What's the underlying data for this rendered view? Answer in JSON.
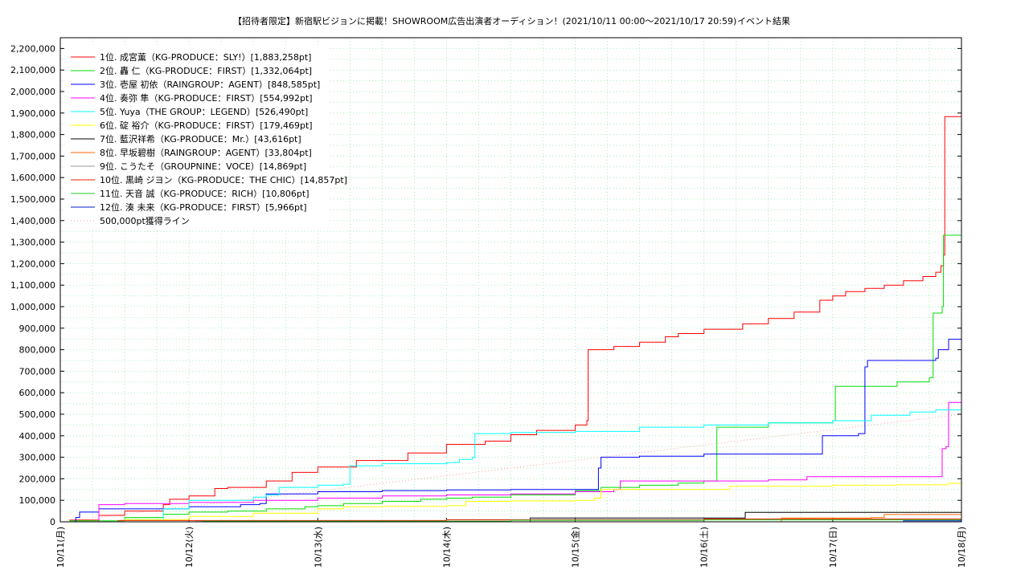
{
  "chart_data": {
    "type": "line",
    "title": "【招待者限定】新宿駅ビジョンに掲載！SHOWROOM広告出演者オーディション！(2021/10/11 00:00～2021/10/17 20:59)",
    "subtitle": "イベント結果",
    "ylim": [
      0,
      2250000
    ],
    "yticks": [
      "0",
      "100,000",
      "200,000",
      "300,000",
      "400,000",
      "500,000",
      "600,000",
      "700,000",
      "800,000",
      "900,000",
      "1,000,000",
      "1,100,000",
      "1,200,000",
      "1,300,000",
      "1,400,000",
      "1,500,000",
      "1,600,000",
      "1,700,000",
      "1,800,000",
      "1,900,000",
      "2,000,000",
      "2,100,000",
      "2,200,000"
    ],
    "xticks": [
      "10/11(月)",
      "10/12(火)",
      "10/13(水)",
      "10/14(木)",
      "10/15(金)",
      "10/16(土)",
      "10/17(日)",
      "10/18(月)"
    ],
    "xlim_days": [
      0,
      7
    ],
    "grid": true,
    "legend_position": "top-left",
    "series": [
      {
        "name": "1位. 成宮薫（KG-PRODUCE：SLY!）[1,883,258pt]",
        "color": "#ff0000",
        "x": [
          0.07,
          0.3,
          0.5,
          0.8,
          0.85,
          1.0,
          1.2,
          1.3,
          1.6,
          1.8,
          2.0,
          2.3,
          2.7,
          3.0,
          3.3,
          3.5,
          3.7,
          4.0,
          4.09,
          4.1,
          4.3,
          4.5,
          4.7,
          4.8,
          5.0,
          5.3,
          5.5,
          5.7,
          5.9,
          6.0,
          6.1,
          6.25,
          6.4,
          6.55,
          6.7,
          6.8,
          6.84,
          6.86,
          6.87,
          7.0
        ],
        "y": [
          8000,
          30000,
          50000,
          80000,
          105000,
          120000,
          155000,
          160000,
          190000,
          230000,
          255000,
          285000,
          320000,
          360000,
          375000,
          405000,
          425000,
          450000,
          470000,
          800000,
          815000,
          835000,
          860000,
          875000,
          895000,
          920000,
          945000,
          975000,
          1030000,
          1050000,
          1070000,
          1085000,
          1100000,
          1120000,
          1140000,
          1160000,
          1190000,
          1240000,
          1883258,
          1883258
        ]
      },
      {
        "name": "2位. 轟 仁（KG-PRODUCE：FIRST）[1,332,064pt]",
        "color": "#00dd00",
        "x": [
          0.07,
          0.5,
          0.8,
          1.0,
          1.3,
          1.6,
          1.9,
          2.0,
          2.2,
          2.5,
          2.8,
          3.0,
          3.2,
          3.5,
          4.0,
          4.2,
          4.5,
          4.8,
          5.0,
          5.1,
          5.5,
          6.0,
          6.02,
          6.5,
          6.75,
          6.78,
          6.85,
          6.86,
          7.0
        ],
        "y": [
          5000,
          20000,
          35000,
          45000,
          50000,
          60000,
          70000,
          75000,
          85000,
          95000,
          105000,
          110000,
          115000,
          125000,
          145000,
          160000,
          170000,
          180000,
          190000,
          440000,
          460000,
          470000,
          630000,
          650000,
          670000,
          970000,
          1000000,
          1332064,
          1332064
        ]
      },
      {
        "name": "3位. 壱屋 初依（RAINGROUP：AGENT）[848,585pt]",
        "color": "#0000ff",
        "x": [
          0.07,
          0.12,
          0.15,
          0.3,
          0.6,
          1.0,
          1.4,
          1.55,
          1.6,
          2.0,
          2.5,
          3.0,
          3.5,
          3.9,
          4.15,
          4.18,
          4.2,
          4.5,
          5.0,
          5.5,
          5.9,
          5.92,
          6.2,
          6.25,
          6.27,
          6.7,
          6.8,
          6.82,
          6.9,
          7.0
        ],
        "y": [
          0,
          20000,
          45000,
          60000,
          60000,
          70000,
          80000,
          85000,
          130000,
          140000,
          145000,
          148000,
          150000,
          150000,
          150000,
          250000,
          300000,
          305000,
          315000,
          315000,
          315000,
          400000,
          410000,
          720000,
          750000,
          750000,
          760000,
          800000,
          848585,
          848585
        ]
      },
      {
        "name": "4位. 奏弥 隼（KG-PRODUCE：FIRST）[554,992pt]",
        "color": "#ff00ff",
        "x": [
          0.07,
          0.25,
          0.3,
          0.5,
          1.0,
          1.5,
          2.0,
          2.5,
          3.0,
          3.5,
          4.0,
          4.3,
          4.35,
          4.5,
          5.0,
          5.5,
          5.8,
          6.0,
          6.5,
          6.8,
          6.85,
          6.88,
          6.9,
          7.0
        ],
        "y": [
          0,
          0,
          80000,
          85000,
          90000,
          100000,
          110000,
          120000,
          125000,
          130000,
          140000,
          150000,
          190000,
          190000,
          190000,
          195000,
          210000,
          210000,
          210000,
          210000,
          340000,
          350000,
          554992,
          554992
        ]
      },
      {
        "name": "5位. Yuya（THE GROUP：LEGEND）[526,490pt]",
        "color": "#00ffff",
        "x": [
          0.07,
          0.5,
          0.8,
          1.0,
          1.5,
          1.6,
          1.7,
          2.0,
          2.2,
          2.25,
          2.5,
          3.0,
          3.1,
          3.2,
          3.22,
          3.5,
          4.0,
          4.5,
          5.0,
          5.5,
          6.0,
          6.3,
          6.6,
          6.8,
          7.0
        ],
        "y": [
          0,
          10000,
          60000,
          100000,
          115000,
          125000,
          160000,
          170000,
          175000,
          260000,
          270000,
          275000,
          290000,
          300000,
          410000,
          415000,
          420000,
          440000,
          450000,
          460000,
          470000,
          495000,
          510000,
          520000,
          526490
        ]
      },
      {
        "name": "6位. 碇 裕介（KG-PRODUCE：FIRST）[179,469pt]",
        "color": "#ffff00",
        "x": [
          0.07,
          0.5,
          1.0,
          1.5,
          2.0,
          2.2,
          2.5,
          3.0,
          3.15,
          3.5,
          4.0,
          4.15,
          4.2,
          4.5,
          5.0,
          5.2,
          5.5,
          6.0,
          6.5,
          6.9,
          7.0
        ],
        "y": [
          0,
          10000,
          25000,
          40000,
          60000,
          70000,
          72000,
          75000,
          95000,
          97000,
          100000,
          110000,
          150000,
          150000,
          150000,
          165000,
          165000,
          170000,
          172000,
          179000,
          179469
        ]
      },
      {
        "name": "7位. 藍沢祥希（KG-PRODUCE：Mr.）[43,616pt]",
        "color": "#000000",
        "x": [
          0.07,
          3.5,
          3.65,
          5.3,
          5.32,
          7.0
        ],
        "y": [
          0,
          0,
          18000,
          18000,
          43616,
          43616
        ]
      },
      {
        "name": "8位. 早坂碧樹（RAINGROUP：AGENT）[33,804pt]",
        "color": "#ff6600",
        "x": [
          0.07,
          5.5,
          5.6,
          6.3,
          6.4,
          7.0
        ],
        "y": [
          0,
          0,
          18000,
          20000,
          33804,
          33804
        ]
      },
      {
        "name": "9位. こうたそ（GROUPNINE：VOCE）[14,869pt]",
        "color": "#999999",
        "x": [
          0.07,
          1.0,
          1.05,
          3.0,
          5.0,
          7.0
        ],
        "y": [
          0,
          0,
          5000,
          10000,
          13000,
          14869
        ]
      },
      {
        "name": "10位. 黒崎 ジヨン（KG-PRODUCE：THE CHIC）[14,857pt]",
        "color": "#ee2200",
        "x": [
          0.07,
          0.4,
          0.45,
          3.0,
          5.0,
          7.0
        ],
        "y": [
          0,
          0,
          6000,
          9000,
          13000,
          14857
        ]
      },
      {
        "name": "11位. 天音 誠（KG-PRODUCE：RICH）[10,806pt]",
        "color": "#22cc22",
        "x": [
          0.07,
          1.0,
          1.1,
          3.5,
          5.0,
          7.0
        ],
        "y": [
          0,
          0,
          3000,
          7000,
          9000,
          10806
        ]
      },
      {
        "name": "12位. 湊 未来（KG-PRODUCE：FIRST）[5,966pt]",
        "color": "#0022cc",
        "x": [
          0.07,
          3.5,
          6.5,
          6.55,
          7.0
        ],
        "y": [
          0,
          0,
          0,
          5000,
          5966
        ]
      },
      {
        "name": "500,000pt獲得ライン",
        "color": "#ff9999",
        "dotted": true,
        "x": [
          0,
          7.0
        ],
        "y": [
          0,
          500000
        ]
      }
    ]
  }
}
